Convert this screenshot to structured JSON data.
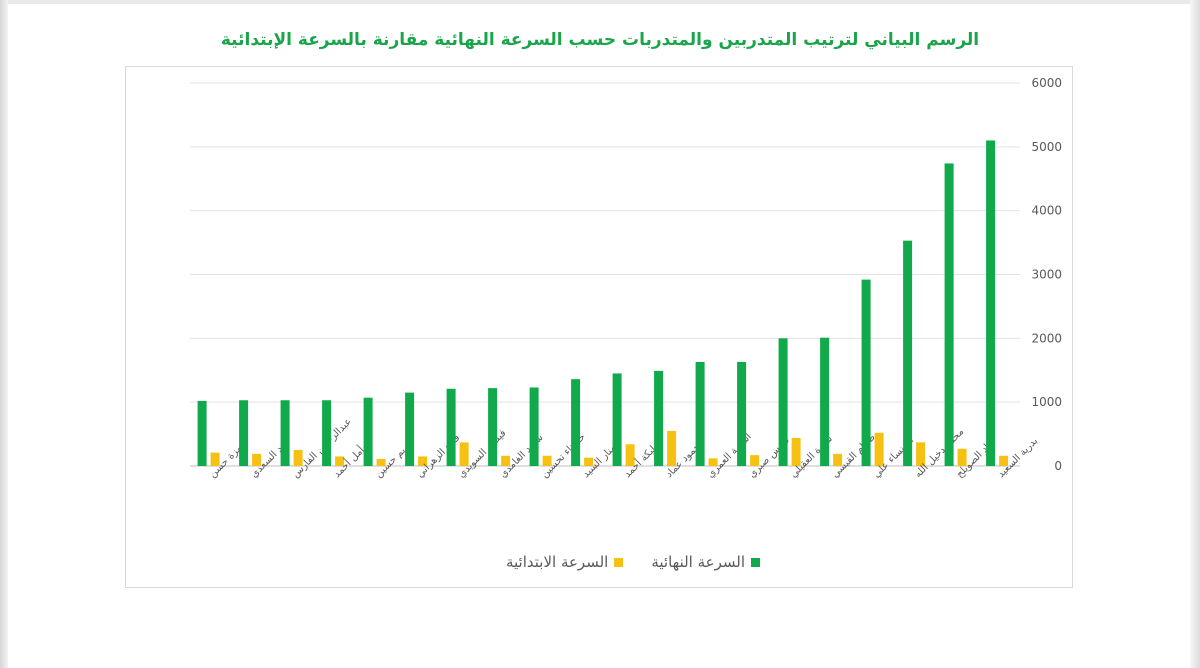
{
  "colors": {
    "final": "#10a94b",
    "initial": "#f7c114",
    "title": "#1aa54a"
  },
  "chart_data": {
    "type": "bar",
    "title": "الرسم البياني لترتيب المتدربين والمتدربات حسب السرعة النهائية مقارنة بالسرعة الإبتدائية",
    "categories": [
      "حمزة حسن",
      "هند السعدي",
      "عبدالرحمن الفارس",
      "أمل أحمد",
      "مريم حسين",
      "فلاح الزهراني",
      "فيصل السويدي",
      "سعيد الغامدي",
      "حسناء تحسين",
      "منار السيد",
      "مليكة أحمد",
      "محمود عماد",
      "أسامة العمري",
      "فارس صبري",
      "سارة العقيلي",
      "صدام القيسي",
      "الخنساء علي",
      "محمد دخيل الله",
      "زياد الصويلح",
      "بدرية السعيد"
    ],
    "series": [
      {
        "name": "السرعة النهائية",
        "values": [
          1020,
          1030,
          1030,
          1030,
          1070,
          1150,
          1210,
          1220,
          1230,
          1360,
          1450,
          1490,
          1630,
          1630,
          2000,
          2010,
          2920,
          3530,
          4740,
          5100
        ]
      },
      {
        "name": "السرعة الابتدائية",
        "values": [
          210,
          190,
          250,
          150,
          110,
          150,
          370,
          160,
          160,
          130,
          340,
          550,
          120,
          170,
          440,
          190,
          520,
          370,
          270,
          160
        ]
      }
    ],
    "ylim": [
      0,
      6000
    ],
    "yticks": [
      "0",
      "1000",
      "2000",
      "3000",
      "4000",
      "5000",
      "6000"
    ],
    "y_axis_side": "right",
    "grid": true,
    "legend_position": "bottom"
  }
}
